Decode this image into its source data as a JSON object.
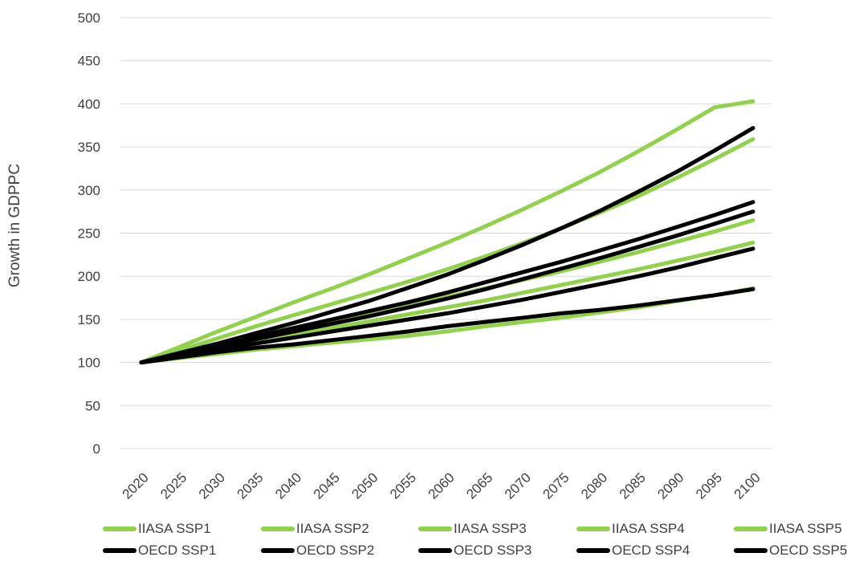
{
  "chart_data": {
    "type": "line",
    "title": "",
    "xlabel": "",
    "ylabel": "Growth in GDPPC",
    "ylim": [
      0,
      500
    ],
    "yticks": [
      "0",
      "50",
      "100",
      "150",
      "200",
      "250",
      "300",
      "350",
      "400",
      "450",
      "500"
    ],
    "x": [
      "2020",
      "2025",
      "2030",
      "2035",
      "2040",
      "2045",
      "2050",
      "2055",
      "2060",
      "2065",
      "2070",
      "2075",
      "2080",
      "2085",
      "2090",
      "2095",
      "2100"
    ],
    "grid": true,
    "legend_position": "bottom",
    "colors": {
      "IIASA": "#92d050",
      "OECD": "#000000"
    },
    "series": [
      {
        "name": "IIASA SSP1",
        "color": "#92d050",
        "values": [
          100,
          114,
          128,
          142,
          155,
          168,
          181,
          194,
          208,
          223,
          239,
          256,
          274,
          293,
          314,
          336,
          359
        ]
      },
      {
        "name": "IIASA SSP2",
        "color": "#92d050",
        "values": [
          100,
          111,
          121,
          131,
          140,
          149,
          158,
          167,
          176,
          186,
          196,
          206,
          217,
          228,
          240,
          252,
          265
        ]
      },
      {
        "name": "IIASA SSP3",
        "color": "#92d050",
        "values": [
          100,
          105,
          110,
          115,
          119,
          123,
          127,
          131,
          136,
          142,
          147,
          152,
          158,
          164,
          171,
          178,
          186
        ]
      },
      {
        "name": "IIASA SSP4",
        "color": "#92d050",
        "values": [
          100,
          109,
          117,
          125,
          133,
          140,
          148,
          156,
          164,
          172,
          181,
          190,
          199,
          208,
          218,
          228,
          239
        ]
      },
      {
        "name": "IIASA SSP5",
        "color": "#92d050",
        "values": [
          100,
          118,
          136,
          153,
          170,
          186,
          203,
          221,
          239,
          258,
          278,
          299,
          321,
          345,
          370,
          396,
          403
        ]
      },
      {
        "name": "OECD SSP1",
        "color": "#000000",
        "values": [
          100,
          111,
          122,
          134,
          146,
          159,
          172,
          187,
          202,
          219,
          237,
          256,
          276,
          298,
          321,
          346,
          372
        ]
      },
      {
        "name": "OECD SSP2",
        "color": "#000000",
        "values": [
          100,
          109,
          118,
          127,
          136,
          145,
          154,
          164,
          174,
          185,
          197,
          209,
          221,
          234,
          247,
          261,
          275
        ]
      },
      {
        "name": "OECD SSP3",
        "color": "#000000",
        "values": [
          100,
          106,
          112,
          117,
          121,
          126,
          131,
          136,
          142,
          147,
          152,
          157,
          161,
          166,
          172,
          178,
          185
        ]
      },
      {
        "name": "OECD SSP4",
        "color": "#000000",
        "values": [
          100,
          107,
          115,
          122,
          129,
          136,
          143,
          150,
          157,
          165,
          173,
          182,
          191,
          200,
          210,
          221,
          232
        ]
      },
      {
        "name": "OECD SSP5",
        "color": "#000000",
        "values": [
          100,
          110,
          120,
          130,
          140,
          150,
          160,
          170,
          181,
          193,
          205,
          217,
          230,
          243,
          257,
          271,
          286
        ]
      }
    ]
  }
}
